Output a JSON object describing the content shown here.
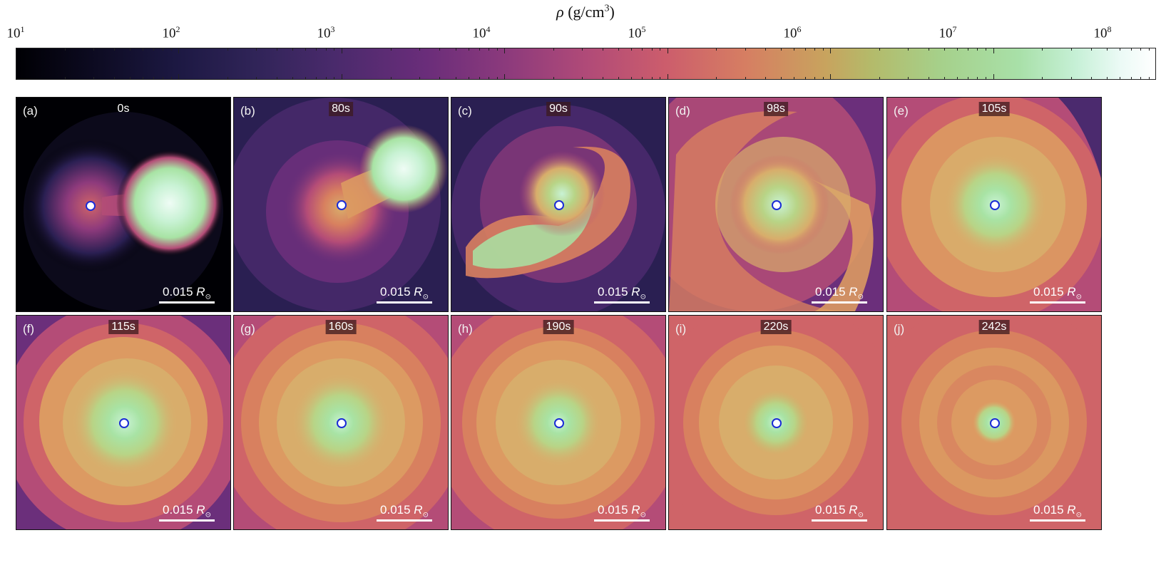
{
  "colorbar": {
    "title_symbol": "ρ",
    "title_units": "(g/cm",
    "title_power": "3",
    "title_close": ")",
    "tick_base": "10",
    "tick_exponents": [
      "1",
      "2",
      "3",
      "4",
      "5",
      "6",
      "7",
      "8"
    ],
    "colormap": "magma-like",
    "range": [
      10,
      100000000
    ]
  },
  "panels": [
    {
      "label": "(a)",
      "time": "0s",
      "scale": "0.015",
      "scale_unit": "R",
      "scale_sub": "⊙",
      "central_density_stage": 0
    },
    {
      "label": "(b)",
      "time": "80s",
      "scale": "0.015",
      "scale_unit": "R",
      "scale_sub": "⊙",
      "central_density_stage": 1
    },
    {
      "label": "(c)",
      "time": "90s",
      "scale": "0.015",
      "scale_unit": "R",
      "scale_sub": "⊙",
      "central_density_stage": 2
    },
    {
      "label": "(d)",
      "time": "98s",
      "scale": "0.015",
      "scale_unit": "R",
      "scale_sub": "⊙",
      "central_density_stage": 3
    },
    {
      "label": "(e)",
      "time": "105s",
      "scale": "0.015",
      "scale_unit": "R",
      "scale_sub": "⊙",
      "central_density_stage": 4
    },
    {
      "label": "(f)",
      "time": "115s",
      "scale": "0.015",
      "scale_unit": "R",
      "scale_sub": "⊙",
      "central_density_stage": 5
    },
    {
      "label": "(g)",
      "time": "160s",
      "scale": "0.015",
      "scale_unit": "R",
      "scale_sub": "⊙",
      "central_density_stage": 6
    },
    {
      "label": "(h)",
      "time": "190s",
      "scale": "0.015",
      "scale_unit": "R",
      "scale_sub": "⊙",
      "central_density_stage": 7
    },
    {
      "label": "(i)",
      "time": "220s",
      "scale": "0.015",
      "scale_unit": "R",
      "scale_sub": "⊙",
      "central_density_stage": 8
    },
    {
      "label": "(j)",
      "time": "242s",
      "scale": "0.015",
      "scale_unit": "R",
      "scale_sub": "⊙",
      "central_density_stage": 9
    }
  ],
  "colors": {
    "marker_outline": "#1a2bd6",
    "marker_fill": "#ffffff",
    "scale_bar": "#ffffff"
  }
}
